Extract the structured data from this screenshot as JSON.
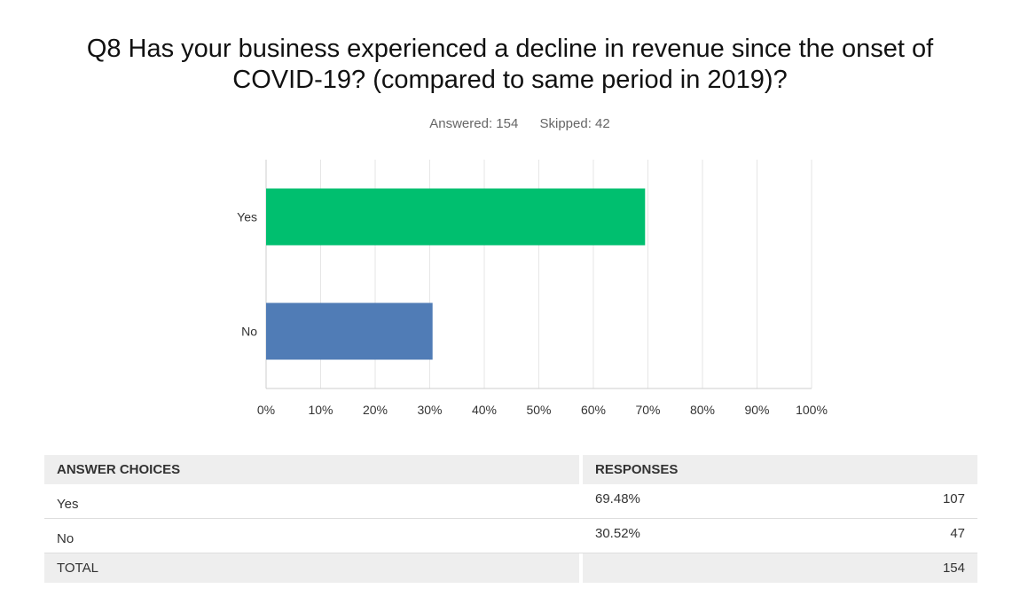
{
  "title_line1": "Q8 Has your business experienced a decline in revenue since the onset of",
  "title_line2": "COVID-19? (compared to same period in 2019)?",
  "answered_text": "Answered: 154",
  "skipped_text": "Skipped: 42",
  "colors": {
    "yes": "#00bf6f",
    "no": "#507cb6",
    "grid": "#e6e6e6"
  },
  "chart_data": {
    "type": "bar",
    "orientation": "horizontal",
    "categories": [
      "Yes",
      "No"
    ],
    "values": [
      69.48,
      30.52
    ],
    "xlim": [
      0,
      100
    ],
    "x_ticks": [
      "0%",
      "10%",
      "20%",
      "30%",
      "40%",
      "50%",
      "60%",
      "70%",
      "80%",
      "90%",
      "100%"
    ],
    "grid": true
  },
  "table": {
    "headers": {
      "choices": "ANSWER CHOICES",
      "responses": "RESPONSES"
    },
    "rows": [
      {
        "label": "Yes",
        "percent": "69.48%",
        "count": "107"
      },
      {
        "label": "No",
        "percent": "30.52%",
        "count": "47"
      }
    ],
    "total": {
      "label": "TOTAL",
      "count": "154"
    }
  }
}
